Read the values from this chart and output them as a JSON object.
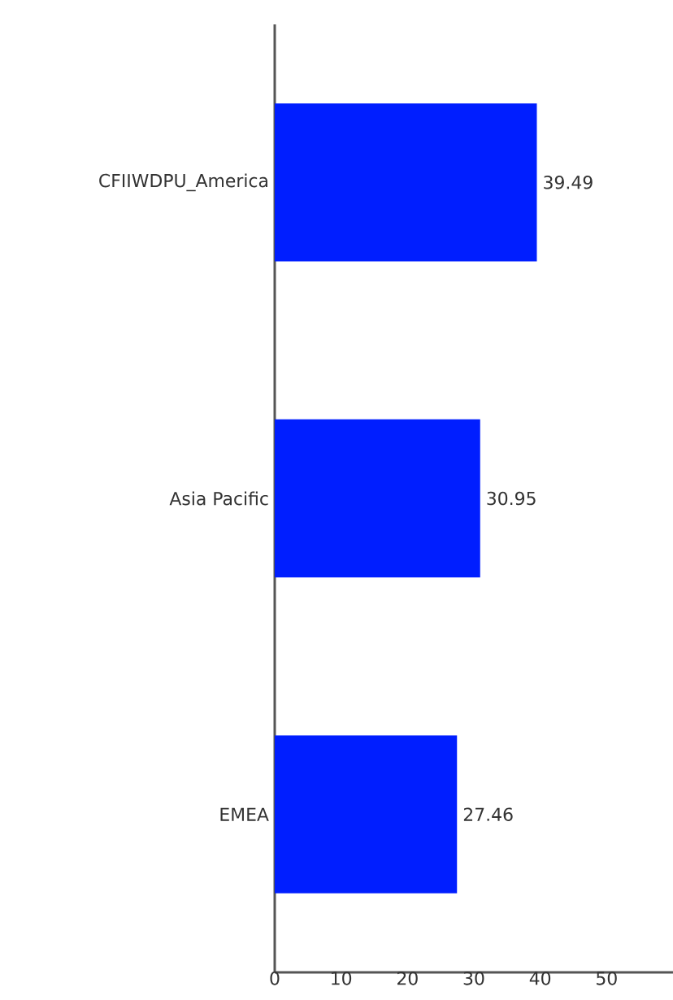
{
  "chart_data": {
    "type": "bar",
    "orientation": "horizontal",
    "categories": [
      "CFIIWDPU_America",
      "Asia Pacific",
      "EMEA"
    ],
    "values": [
      39.49,
      30.95,
      27.46
    ],
    "color": "#001eff",
    "data_labels": true,
    "xlim": [
      0,
      60
    ],
    "xticks": [
      0,
      10,
      20,
      30,
      40,
      50
    ]
  }
}
